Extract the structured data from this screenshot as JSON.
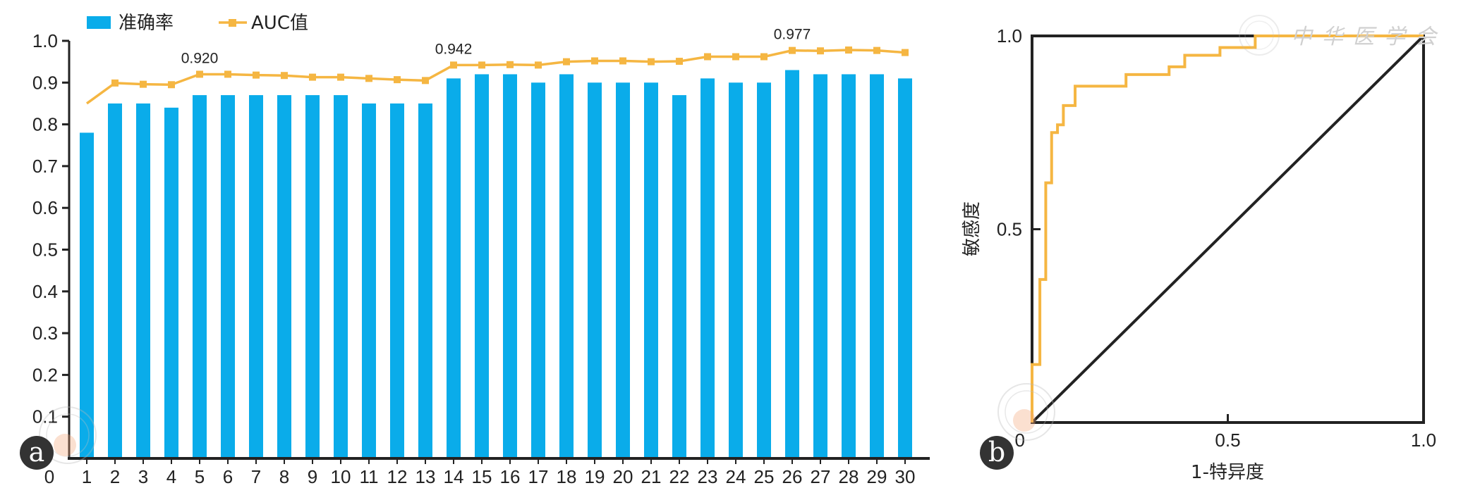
{
  "chart_data": [
    {
      "panel": "a",
      "type": "bar",
      "categories": [
        "1",
        "2",
        "3",
        "4",
        "5",
        "6",
        "7",
        "8",
        "9",
        "10",
        "11",
        "12",
        "13",
        "14",
        "15",
        "16",
        "17",
        "18",
        "19",
        "20",
        "21",
        "22",
        "23",
        "24",
        "25",
        "26",
        "27",
        "28",
        "29",
        "30"
      ],
      "x_origin_label": "0",
      "series": [
        {
          "name": "准确率",
          "type": "bar",
          "color": "#0aacea",
          "values": [
            0.78,
            0.85,
            0.85,
            0.84,
            0.87,
            0.87,
            0.87,
            0.87,
            0.87,
            0.87,
            0.85,
            0.85,
            0.85,
            0.91,
            0.92,
            0.92,
            0.9,
            0.92,
            0.9,
            0.9,
            0.9,
            0.87,
            0.91,
            0.9,
            0.9,
            0.93,
            0.92,
            0.92,
            0.92,
            0.91
          ]
        },
        {
          "name": "AUC值",
          "type": "line",
          "color": "#f5b642",
          "values": [
            0.85,
            0.899,
            0.896,
            0.895,
            0.92,
            0.92,
            0.918,
            0.917,
            0.913,
            0.913,
            0.91,
            0.907,
            0.905,
            0.942,
            0.942,
            0.943,
            0.942,
            0.95,
            0.952,
            0.952,
            0.95,
            0.951,
            0.962,
            0.962,
            0.962,
            0.977,
            0.976,
            0.978,
            0.977,
            0.972
          ]
        }
      ],
      "annotations": [
        {
          "category": "5",
          "text": "0.920"
        },
        {
          "category": "14",
          "text": "0.942"
        },
        {
          "category": "26",
          "text": "0.977"
        }
      ],
      "ylim": [
        0,
        1.0
      ],
      "yticks": [
        "0.1",
        "0.2",
        "0.3",
        "0.4",
        "0.5",
        "0.6",
        "0.7",
        "0.8",
        "0.9",
        "1.0"
      ],
      "legend_position": "top-left",
      "badge": "a"
    },
    {
      "panel": "b",
      "type": "line",
      "xlabel": "1-特异度",
      "ylabel": "敏感度",
      "xlim": [
        0,
        1.0
      ],
      "ylim": [
        0,
        1.0
      ],
      "xticks": [
        "0",
        "0.5",
        "1.0"
      ],
      "yticks": [
        "0.5",
        "1.0"
      ],
      "series": [
        {
          "name": "ROC",
          "color": "#f5b642",
          "points": [
            [
              0,
              0
            ],
            [
              0,
              0.15
            ],
            [
              0.02,
              0.15
            ],
            [
              0.02,
              0.37
            ],
            [
              0.035,
              0.37
            ],
            [
              0.035,
              0.62
            ],
            [
              0.05,
              0.62
            ],
            [
              0.05,
              0.75
            ],
            [
              0.065,
              0.75
            ],
            [
              0.065,
              0.77
            ],
            [
              0.08,
              0.77
            ],
            [
              0.08,
              0.82
            ],
            [
              0.11,
              0.82
            ],
            [
              0.11,
              0.87
            ],
            [
              0.24,
              0.87
            ],
            [
              0.24,
              0.9
            ],
            [
              0.35,
              0.9
            ],
            [
              0.35,
              0.92
            ],
            [
              0.39,
              0.92
            ],
            [
              0.39,
              0.95
            ],
            [
              0.48,
              0.95
            ],
            [
              0.48,
              0.97
            ],
            [
              0.57,
              0.97
            ],
            [
              0.57,
              1.0
            ],
            [
              1.0,
              1.0
            ]
          ]
        },
        {
          "name": "reference",
          "color": "#222222",
          "points": [
            [
              0,
              0
            ],
            [
              1.0,
              1.0
            ]
          ]
        }
      ],
      "badge": "b"
    }
  ],
  "panel_a": {
    "legend": {
      "accuracy_label": "准确率",
      "auc_label": "AUC值"
    },
    "badge": "a",
    "annotations": [
      "0.920",
      "0.942",
      "0.977"
    ]
  },
  "panel_b": {
    "xlabel": "1-特异度",
    "ylabel": "敏感度",
    "badge": "b"
  },
  "colors": {
    "bar": "#0aacea",
    "auc": "#f5b642",
    "axis": "#222222",
    "badge_bg": "#333333"
  },
  "watermark": "中华医学会"
}
